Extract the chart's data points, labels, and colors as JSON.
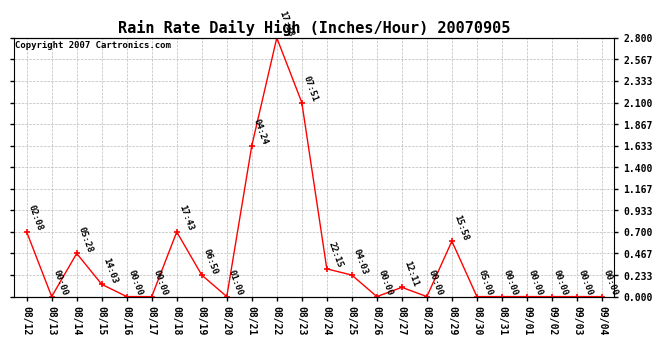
{
  "title": "Rain Rate Daily High (Inches/Hour) 20070905",
  "copyright": "Copyright 2007 Cartronics.com",
  "x_labels": [
    "08/12",
    "08/13",
    "08/14",
    "08/15",
    "08/16",
    "08/17",
    "08/18",
    "08/19",
    "08/20",
    "08/21",
    "08/22",
    "08/23",
    "08/24",
    "08/25",
    "08/26",
    "08/27",
    "08/28",
    "08/29",
    "08/30",
    "08/31",
    "09/01",
    "09/02",
    "09/03",
    "09/04"
  ],
  "y_values": [
    0.7,
    0.0,
    0.467,
    0.133,
    0.0,
    0.0,
    0.7,
    0.233,
    0.0,
    1.633,
    2.8,
    2.1,
    0.3,
    0.233,
    0.0,
    0.1,
    0.0,
    0.6,
    0.0,
    0.0,
    0.0,
    0.0,
    0.0,
    0.0
  ],
  "time_labels": [
    "02:08",
    "00:00",
    "05:28",
    "14:03",
    "00:00",
    "00:00",
    "17:43",
    "06:50",
    "01:00",
    "04:24",
    "17:38",
    "07:51",
    "22:15",
    "04:03",
    "00:00",
    "12:11",
    "00:00",
    "15:58",
    "05:00",
    "00:00",
    "00:00",
    "00:00",
    "00:00",
    "00:00"
  ],
  "y_ticks": [
    0.0,
    0.233,
    0.467,
    0.7,
    0.933,
    1.167,
    1.4,
    1.633,
    1.867,
    2.1,
    2.333,
    2.567,
    2.8
  ],
  "line_color": "#FF0000",
  "marker_color": "#FF0000",
  "background_color": "#FFFFFF",
  "grid_color": "#BBBBBB",
  "title_fontsize": 11,
  "copyright_fontsize": 6.5,
  "tick_fontsize": 7,
  "annotation_fontsize": 6.5,
  "y_min": 0.0,
  "y_max": 2.8
}
